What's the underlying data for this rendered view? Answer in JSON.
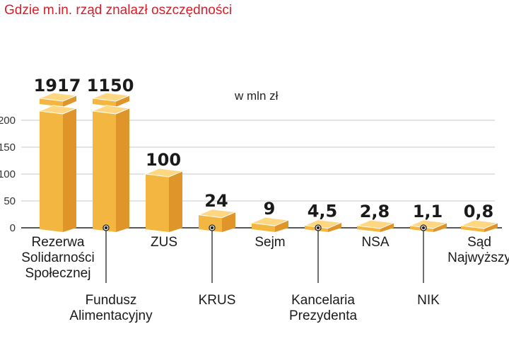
{
  "chart_data": {
    "type": "bar",
    "title": "Gdzie m.in. rząd znalazł oszczędności",
    "unit_label": "w mln zł",
    "ylim": [
      0,
      200
    ],
    "yticks": [
      "0",
      "50",
      "100",
      "150",
      "200"
    ],
    "grid": true,
    "categories": [
      "Rezerwa Solidarności Społecznej",
      "Fundusz Alimentacyjny",
      "ZUS",
      "KRUS",
      "Sejm",
      "Kancelaria Prezydenta",
      "NSA",
      "NIK",
      "Sąd Najwyższy"
    ],
    "category_lines": [
      [
        "Rezerwa",
        "Solidarności",
        "Społecznej"
      ],
      [
        "Fundusz",
        "Alimentacyjny"
      ],
      [
        "ZUS"
      ],
      [
        "KRUS"
      ],
      [
        "Sejm"
      ],
      [
        "Kancelaria",
        "Prezydenta"
      ],
      [
        "NSA"
      ],
      [
        "NIK"
      ],
      [
        "Sąd",
        "Najwyższy"
      ]
    ],
    "values": [
      1917,
      1150,
      100,
      24,
      9,
      4.5,
      2.8,
      1.1,
      0.8
    ],
    "value_labels": [
      "1917",
      "1150",
      "100",
      "24",
      "9",
      "4,5",
      "2,8",
      "1,1",
      "0,8"
    ],
    "broken_axis_bars": [
      0,
      1
    ],
    "colors": {
      "front": "#f3b640",
      "side": "#e0952b",
      "top": "#ffd783",
      "axis": "#222222",
      "grid": "#c9c9c9",
      "title": "#d5202b"
    }
  }
}
